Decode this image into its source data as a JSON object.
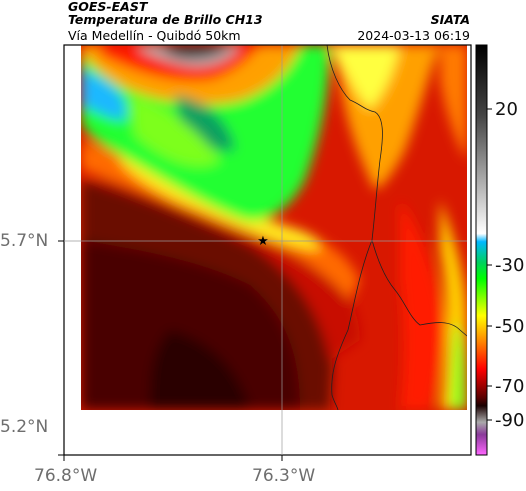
{
  "header": {
    "satellite": "GOES-EAST",
    "product": "Temperatura de Brillo CH13",
    "route": "Vía Medellín - Quibdó 50km",
    "org": "SIATA",
    "datetime": "2024-03-13 06:19"
  },
  "axes": {
    "lat_labels": [
      "5.7°N",
      "5.2°N"
    ],
    "lon_labels": [
      "76.8°W",
      "76.3°W"
    ]
  },
  "colorbar": {
    "tick_labels": [
      "20",
      "-30",
      "-50",
      "-70",
      "-90"
    ],
    "colors": [
      "#ff66ff",
      "#7a3a8a",
      "#2a0000",
      "#8b0000",
      "#ff0000",
      "#ffa500",
      "#ffff00",
      "#00ff00",
      "#00b8ff",
      "#ffffff",
      "#000000"
    ]
  },
  "map": {
    "marker_icon": "star-icon",
    "colors": {
      "cold_cloud": "#1a1a1a",
      "green": "#22ff33",
      "yellow": "#fffd3a",
      "orange": "#ff8a00",
      "red": "#e60000",
      "dark_red": "#5a0800"
    }
  }
}
